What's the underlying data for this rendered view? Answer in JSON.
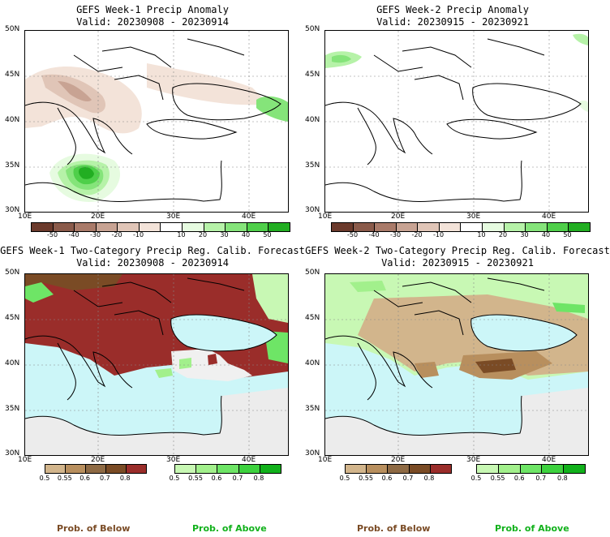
{
  "panels": [
    {
      "id": "p1",
      "title": "GEFS Week-1 Precip Anomaly",
      "valid": "Valid: 20230908 - 20230914"
    },
    {
      "id": "p2",
      "title": "GEFS Week-2 Precip Anomaly",
      "valid": "Valid: 20230915 - 20230921"
    },
    {
      "id": "p3",
      "title": "GEFS Week-1 Two-Category Precip Reg. Calib. Forecast",
      "valid": "Valid: 20230908 - 20230914"
    },
    {
      "id": "p4",
      "title": "GEFS Week-2 Two-Category Precip Reg. Calib. Forecast",
      "valid": "Valid: 20230915 - 20230921"
    }
  ],
  "lat_labels": [
    "50N",
    "45N",
    "40N",
    "35N",
    "30N"
  ],
  "lon_labels": [
    "10E",
    "20E",
    "30E",
    "40E"
  ],
  "anomaly_colorbar": {
    "labels": [
      "-50",
      "-40",
      "-30",
      "-20",
      "-10",
      "10",
      "20",
      "30",
      "40",
      "50"
    ],
    "colors": [
      "#6b3a2c",
      "#8a5a4a",
      "#a97a69",
      "#c8a393",
      "#e0c5b7",
      "#f3e3d9",
      "#ffffff",
      "#e6fbe0",
      "#b6f2a8",
      "#85e47a",
      "#4fcf4a",
      "#22ae22"
    ]
  },
  "prob_below_colorbar": {
    "labels": [
      "0.5",
      "0.55",
      "0.6",
      "0.7",
      "0.8"
    ],
    "colors": [
      "#d2b58c",
      "#b88f5e",
      "#8e6a44",
      "#7a4b25",
      "#9a2d2a"
    ]
  },
  "prob_above_colorbar": {
    "labels": [
      "0.5",
      "0.55",
      "0.6",
      "0.7",
      "0.8"
    ],
    "colors": [
      "#c8f8b4",
      "#a2f08c",
      "#6ee566",
      "#3dd23e",
      "#11b11b"
    ]
  },
  "footer": {
    "below": "Prob. of Below",
    "above": "Prob. of Above"
  }
}
